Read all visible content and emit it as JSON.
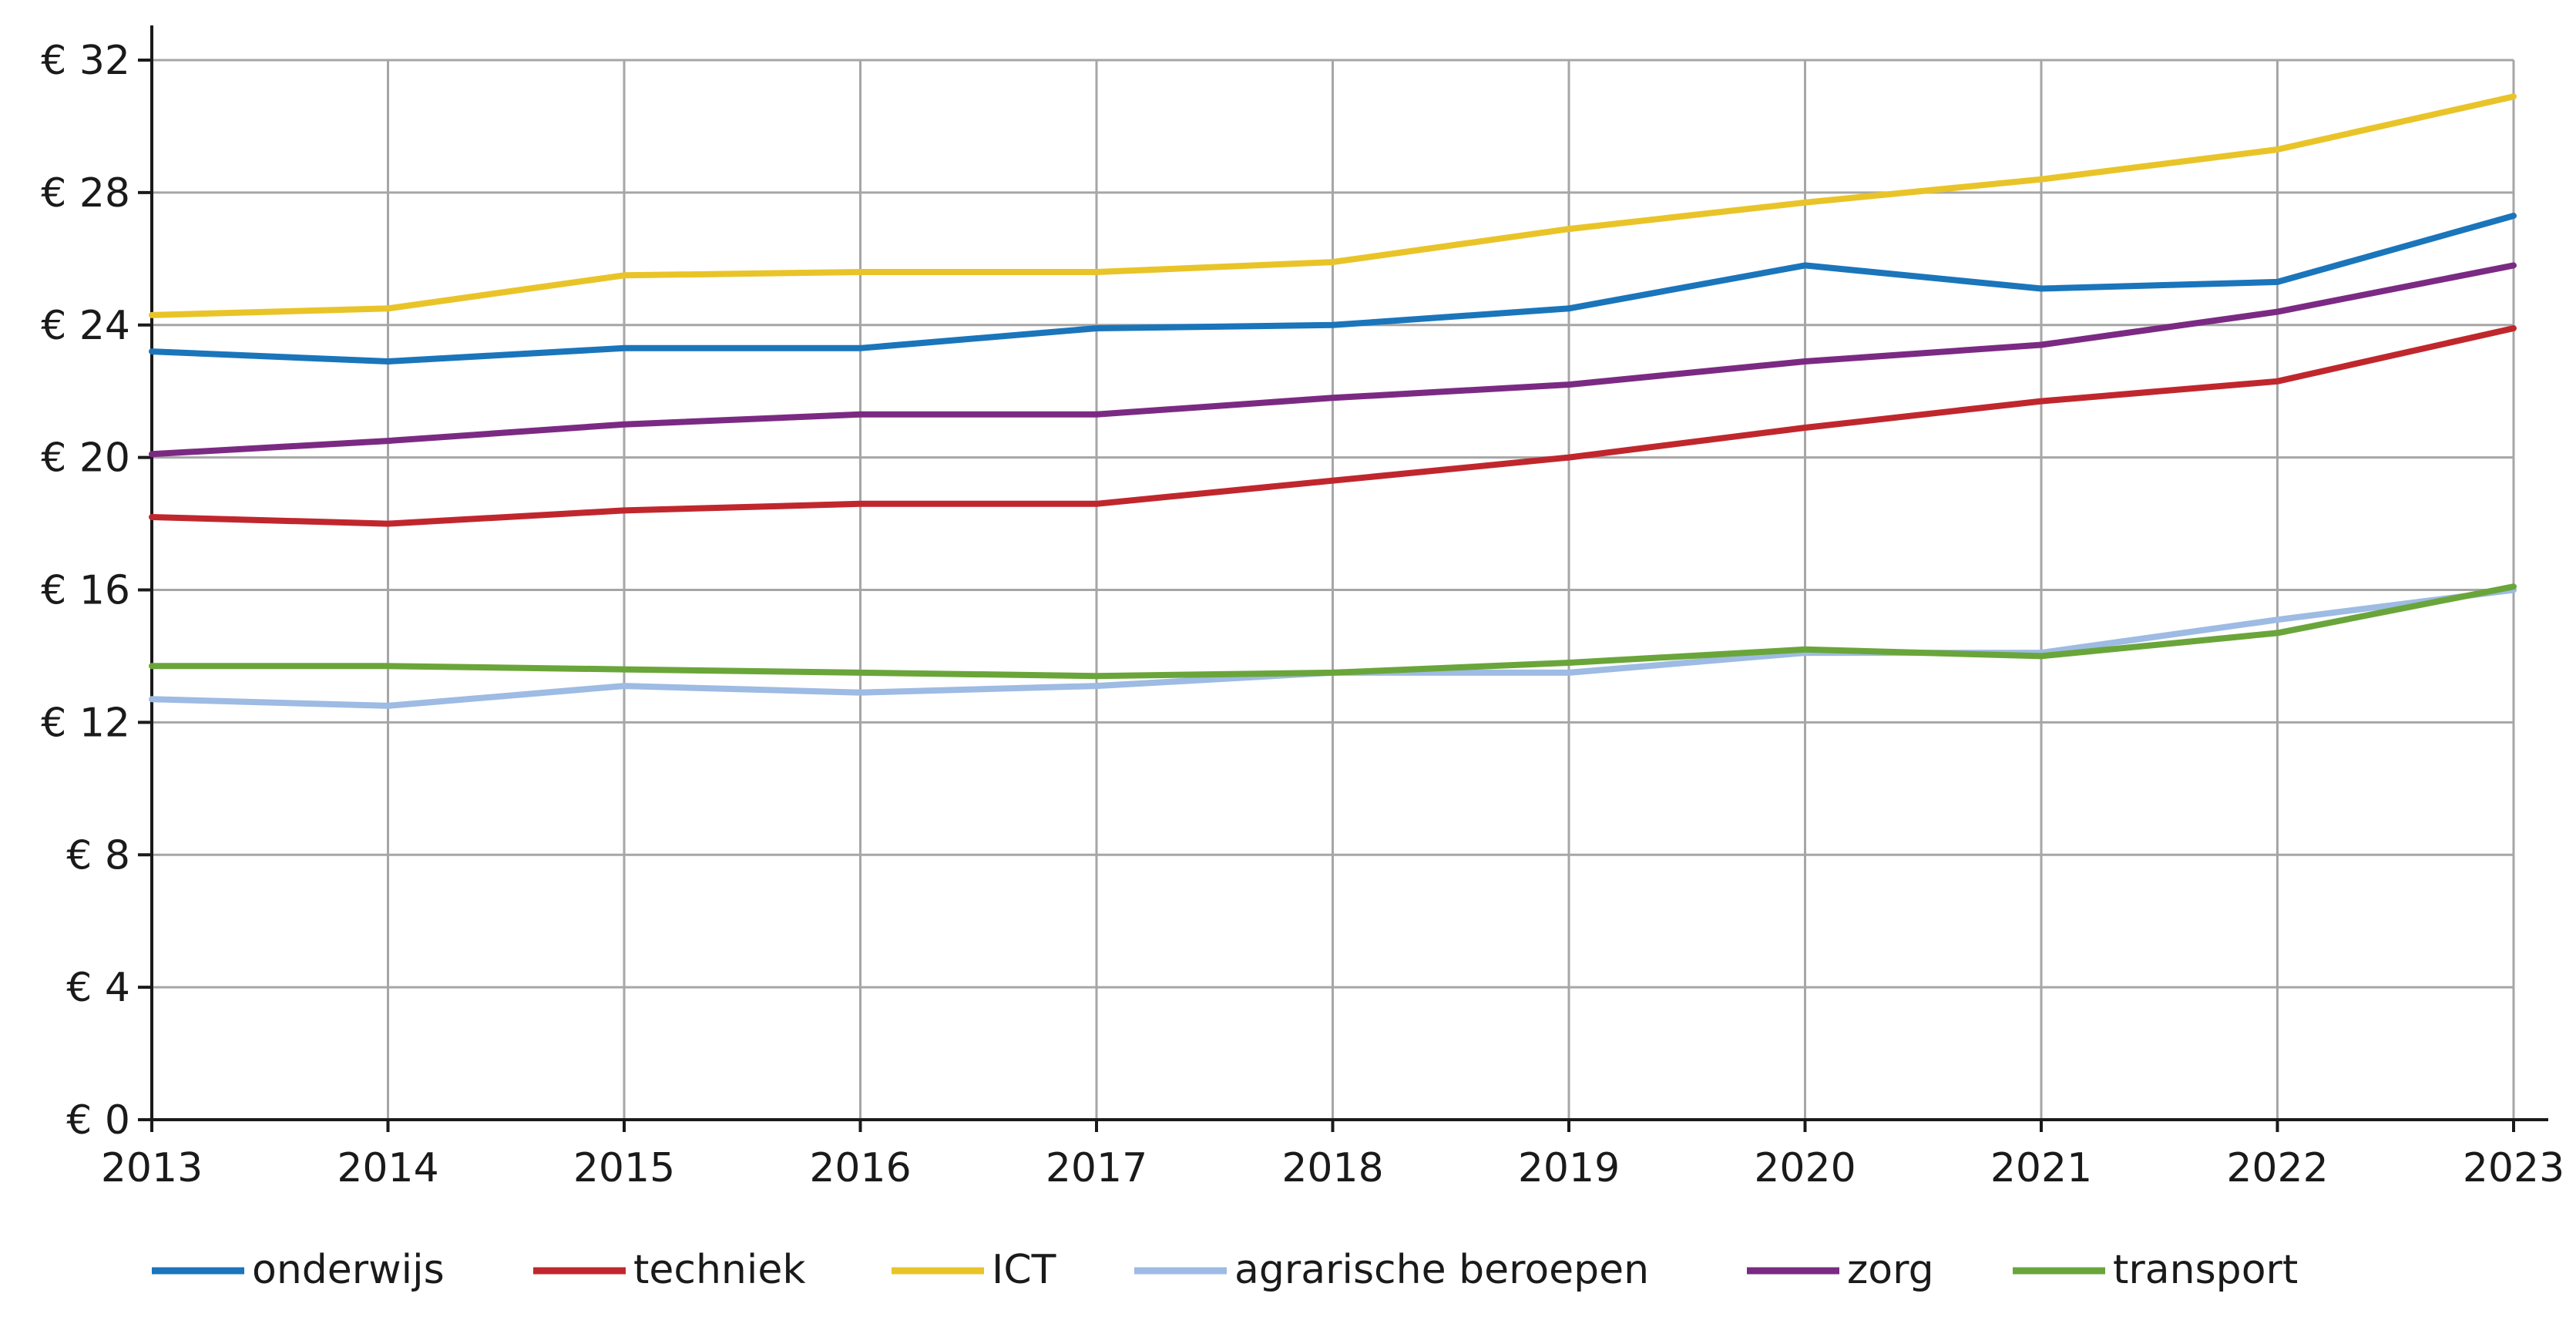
{
  "chart_data": {
    "type": "line",
    "x": [
      "2013",
      "2014",
      "2015",
      "2016",
      "2017",
      "2018",
      "2019",
      "2020",
      "2021",
      "2022",
      "2023"
    ],
    "ylim": [
      0,
      32
    ],
    "yticks": [
      0,
      4,
      8,
      12,
      16,
      20,
      24,
      28,
      32
    ],
    "ytick_prefix": "€ ",
    "grid": true,
    "legend_position": "bottom",
    "series": [
      {
        "name": "onderwijs",
        "color": "#1a75bb",
        "values": [
          23.2,
          22.9,
          23.3,
          23.3,
          23.9,
          24.0,
          24.5,
          25.8,
          25.1,
          25.3,
          27.3
        ]
      },
      {
        "name": "techniek",
        "color": "#c0272d",
        "values": [
          18.2,
          18.0,
          18.4,
          18.6,
          18.6,
          19.3,
          20.0,
          20.9,
          21.7,
          22.3,
          23.9
        ]
      },
      {
        "name": "ICT",
        "color": "#e9c428",
        "values": [
          24.3,
          24.5,
          25.5,
          25.6,
          25.6,
          25.9,
          26.9,
          27.7,
          28.4,
          29.3,
          30.9
        ]
      },
      {
        "name": "agrarische beroepen",
        "color": "#9dbbe3",
        "values": [
          12.7,
          12.5,
          13.1,
          12.9,
          13.1,
          13.5,
          13.5,
          14.1,
          14.1,
          15.1,
          16.0
        ]
      },
      {
        "name": "zorg",
        "color": "#7b2a83",
        "values": [
          20.1,
          20.5,
          21.0,
          21.3,
          21.3,
          21.8,
          22.2,
          22.9,
          23.4,
          24.4,
          25.8
        ]
      },
      {
        "name": "transport",
        "color": "#6aa53a",
        "values": [
          13.7,
          13.7,
          13.6,
          13.5,
          13.4,
          13.5,
          13.8,
          14.2,
          14.0,
          14.7,
          16.1
        ]
      }
    ]
  }
}
